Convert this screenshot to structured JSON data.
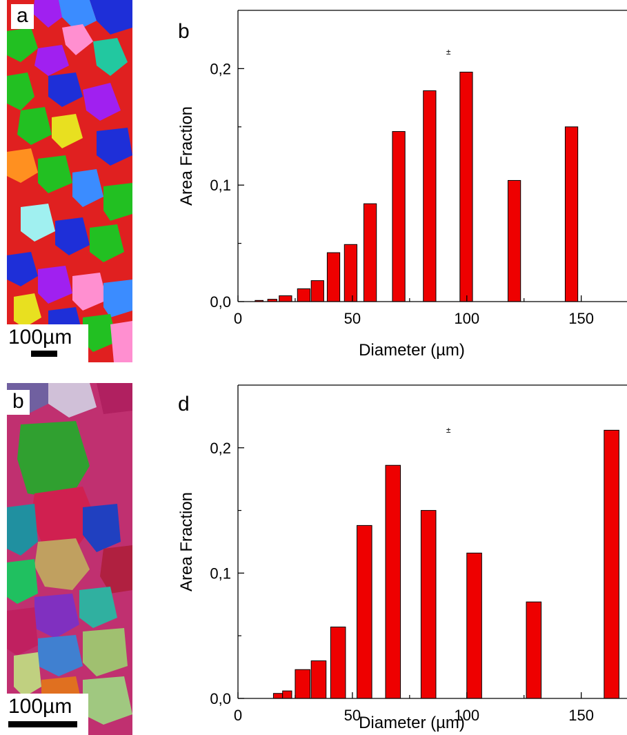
{
  "micrographs": [
    {
      "label": "a",
      "scalebar": "100µm"
    },
    {
      "label": "b",
      "scalebar": "100µm"
    }
  ],
  "chart_data": [
    {
      "panel": "b",
      "type": "bar",
      "xlabel": "Diameter (µm)",
      "ylabel": "Area Fraction",
      "xlim": [
        0,
        170
      ],
      "ylim": [
        0,
        0.25
      ],
      "x_ticks": [
        0,
        50,
        100,
        150
      ],
      "x_tick_labels": [
        "0",
        "50",
        "100",
        "150"
      ],
      "y_ticks": [
        0,
        0.1,
        0.2
      ],
      "y_tick_labels": [
        "0,0",
        "0,1",
        "0,2"
      ],
      "annotation": "±",
      "annotation_pos": [
        92,
        0.212
      ],
      "bar_color": "#ee0000",
      "bars": [
        {
          "x": 7.5,
          "width": 3.5,
          "value": 0.001
        },
        {
          "x": 13,
          "width": 4,
          "value": 0.002
        },
        {
          "x": 18,
          "width": 5.5,
          "value": 0.005
        },
        {
          "x": 26,
          "width": 5.5,
          "value": 0.011
        },
        {
          "x": 32,
          "width": 5.5,
          "value": 0.018
        },
        {
          "x": 39,
          "width": 5.5,
          "value": 0.042
        },
        {
          "x": 46.5,
          "width": 5.5,
          "value": 0.049
        },
        {
          "x": 55,
          "width": 5.5,
          "value": 0.084
        },
        {
          "x": 67.5,
          "width": 5.5,
          "value": 0.146
        },
        {
          "x": 81,
          "width": 5.5,
          "value": 0.181
        },
        {
          "x": 97,
          "width": 5.5,
          "value": 0.197
        },
        {
          "x": 118,
          "width": 5.5,
          "value": 0.104
        },
        {
          "x": 143,
          "width": 5.5,
          "value": 0.15
        }
      ]
    },
    {
      "panel": "d",
      "type": "bar",
      "xlabel": "Diameter (µm)",
      "ylabel": "Area Fraction",
      "xlim": [
        0,
        170
      ],
      "ylim": [
        0,
        0.25
      ],
      "x_ticks": [
        0,
        50,
        100,
        150
      ],
      "x_tick_labels": [
        "0",
        "50",
        "100",
        "150"
      ],
      "y_ticks": [
        0,
        0.1,
        0.2
      ],
      "y_tick_labels": [
        "0,0",
        "0,1",
        "0,2"
      ],
      "annotation": "±",
      "annotation_pos": [
        92,
        0.212
      ],
      "bar_color": "#ee0000",
      "bars": [
        {
          "x": 15.5,
          "width": 4,
          "value": 0.004
        },
        {
          "x": 19.5,
          "width": 4,
          "value": 0.006
        },
        {
          "x": 25,
          "width": 6.5,
          "value": 0.023
        },
        {
          "x": 32,
          "width": 6.5,
          "value": 0.03
        },
        {
          "x": 40.5,
          "width": 6.5,
          "value": 0.057
        },
        {
          "x": 52,
          "width": 6.5,
          "value": 0.138
        },
        {
          "x": 64.5,
          "width": 6.5,
          "value": 0.186
        },
        {
          "x": 80,
          "width": 6.5,
          "value": 0.15
        },
        {
          "x": 100,
          "width": 6.5,
          "value": 0.116
        },
        {
          "x": 126,
          "width": 6.5,
          "value": 0.077
        },
        {
          "x": 160,
          "width": 6.5,
          "value": 0.214
        }
      ]
    }
  ]
}
